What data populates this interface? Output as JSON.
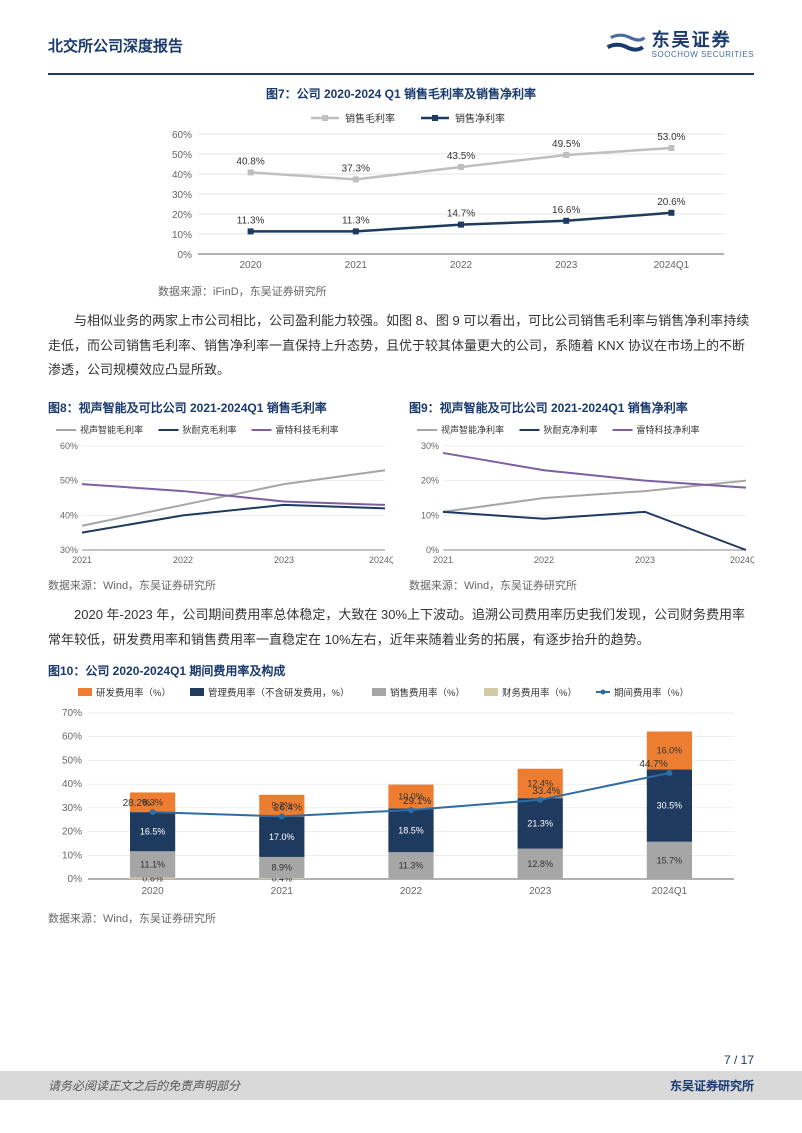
{
  "header": {
    "title": "北交所公司深度报告",
    "logo_main": "东吴证券",
    "logo_sub": "SOOCHOW SECURITIES"
  },
  "colors": {
    "brand": "#1a3a6e",
    "grid": "#cccccc",
    "text_gray": "#666666",
    "light_gray": "#bfbfbf",
    "dark_blue": "#1f3a5f",
    "orange": "#ed7d31",
    "purple": "#7e5fa3",
    "mid_gray": "#a6a6a6"
  },
  "fig7": {
    "title": "图7：公司 2020-2024 Q1 销售毛利率及销售净利率",
    "source": "数据来源：iFinD，东吴证券研究所",
    "legend": {
      "gross": "销售毛利率",
      "net": "销售净利率"
    },
    "categories": [
      "2020",
      "2021",
      "2022",
      "2023",
      "2024Q1"
    ],
    "gross_values": [
      40.8,
      37.3,
      43.5,
      49.5,
      53.0
    ],
    "net_values": [
      11.3,
      11.3,
      14.7,
      16.6,
      20.6
    ],
    "gross_labels": [
      "40.8%",
      "37.3%",
      "43.5%",
      "49.5%",
      "53.0%"
    ],
    "net_labels": [
      "11.3%",
      "11.3%",
      "14.7%",
      "16.6%",
      "20.6%"
    ],
    "ylim": [
      0,
      60
    ],
    "ytick_step": 10,
    "gross_color": "#bfbfbf",
    "net_color": "#1f3a5f",
    "line_width": 2.5
  },
  "para1": "与相似业务的两家上市公司相比，公司盈利能力较强。如图 8、图 9 可以看出，可比公司销售毛利率与销售净利率持续走低，而公司销售毛利率、销售净利率一直保持上升态势，且优于较其体量更大的公司，系随着 KNX 协议在市场上的不断渗透，公司规模效应凸显所致。",
  "fig8": {
    "title": "图8：视声智能及可比公司 2021-2024Q1 销售毛利率",
    "source": "数据来源：Wind，东吴证券研究所",
    "legend": {
      "a": "视声智能毛利率",
      "b": "狄耐克毛利率",
      "c": "雷特科技毛利率"
    },
    "categories": [
      "2021",
      "2022",
      "2023",
      "2024Q1"
    ],
    "a_values": [
      37,
      43,
      49,
      53
    ],
    "b_values": [
      35,
      40,
      43,
      42
    ],
    "c_values": [
      49,
      47,
      44,
      43
    ],
    "ylim": [
      30,
      60
    ],
    "ytick_step": 10,
    "a_color": "#a6a6a6",
    "b_color": "#1f3a5f",
    "c_color": "#7e5fa3",
    "line_width": 2
  },
  "fig9": {
    "title": "图9：视声智能及可比公司 2021-2024Q1 销售净利率",
    "source": "数据来源：Wind，东吴证券研究所",
    "legend": {
      "a": "视声智能净利率",
      "b": "狄耐克净利率",
      "c": "雷特科技净利率"
    },
    "categories": [
      "2021",
      "2022",
      "2023",
      "2024Q1"
    ],
    "a_values": [
      11,
      15,
      17,
      20
    ],
    "b_values": [
      11,
      9,
      11,
      0
    ],
    "c_values": [
      28,
      23,
      20,
      18
    ],
    "ylim": [
      0,
      30
    ],
    "ytick_step": 10,
    "a_color": "#a6a6a6",
    "b_color": "#1f3a5f",
    "c_color": "#7e5fa3",
    "line_width": 2
  },
  "para2": "2020 年-2023 年，公司期间费用率总体稳定，大致在 30%上下波动。追溯公司费用率历史我们发现，公司财务费用率常年较低，研发费用率和销售费用率一直稳定在 10%左右，近年来随着业务的拓展，有逐步抬升的趋势。",
  "fig10": {
    "title": "图10：公司 2020-2024Q1 期间费用率及构成",
    "source": "数据来源：Wind，东吴证券研究所",
    "legend": {
      "rd": "研发费用率（%）",
      "mgmt": "管理费用率（不含研发费用，%）",
      "sales": "销售费用率（%）",
      "fin": "财务费用率（%）",
      "period": "期间费用率（%）"
    },
    "categories": [
      "2020",
      "2021",
      "2022",
      "2023",
      "2024Q1"
    ],
    "fin_values": [
      0.6,
      0.4,
      0,
      0,
      0
    ],
    "sales_values": [
      11.1,
      8.9,
      11.3,
      12.8,
      15.7
    ],
    "mgmt_values": [
      16.5,
      17.0,
      18.5,
      21.3,
      30.5
    ],
    "rd_values": [
      8.3,
      9.2,
      10.0,
      12.4,
      16.0
    ],
    "period_values": [
      28.2,
      26.4,
      29.1,
      33.4,
      44.7
    ],
    "fin_labels": [
      "0.6%",
      "0.4%",
      "",
      "",
      ""
    ],
    "sales_labels": [
      "11.1%",
      "8.9%",
      "11.3%",
      "12.8%",
      "15.7%"
    ],
    "mgmt_labels": [
      "16.5%",
      "17.0%",
      "18.5%",
      "21.3%",
      "30.5%"
    ],
    "rd_labels": [
      "8.3%",
      "9.2%",
      "10.0%",
      "12.4%",
      "16.0%"
    ],
    "period_labels": [
      "28.2%",
      "26.4%",
      "29.1%",
      "33.4%",
      "44.7%"
    ],
    "ylim": [
      0,
      70
    ],
    "ytick_step": 10,
    "rd_color": "#ed7d31",
    "mgmt_color": "#1f3a5f",
    "sales_color": "#a6a6a6",
    "fin_color": "#d0cba4",
    "period_color": "#2e6da4",
    "bar_width": 0.35
  },
  "footer": {
    "page": "7 / 17",
    "disclaimer": "请务必阅读正文之后的免责声明部分",
    "research": "东吴证券研究所"
  }
}
